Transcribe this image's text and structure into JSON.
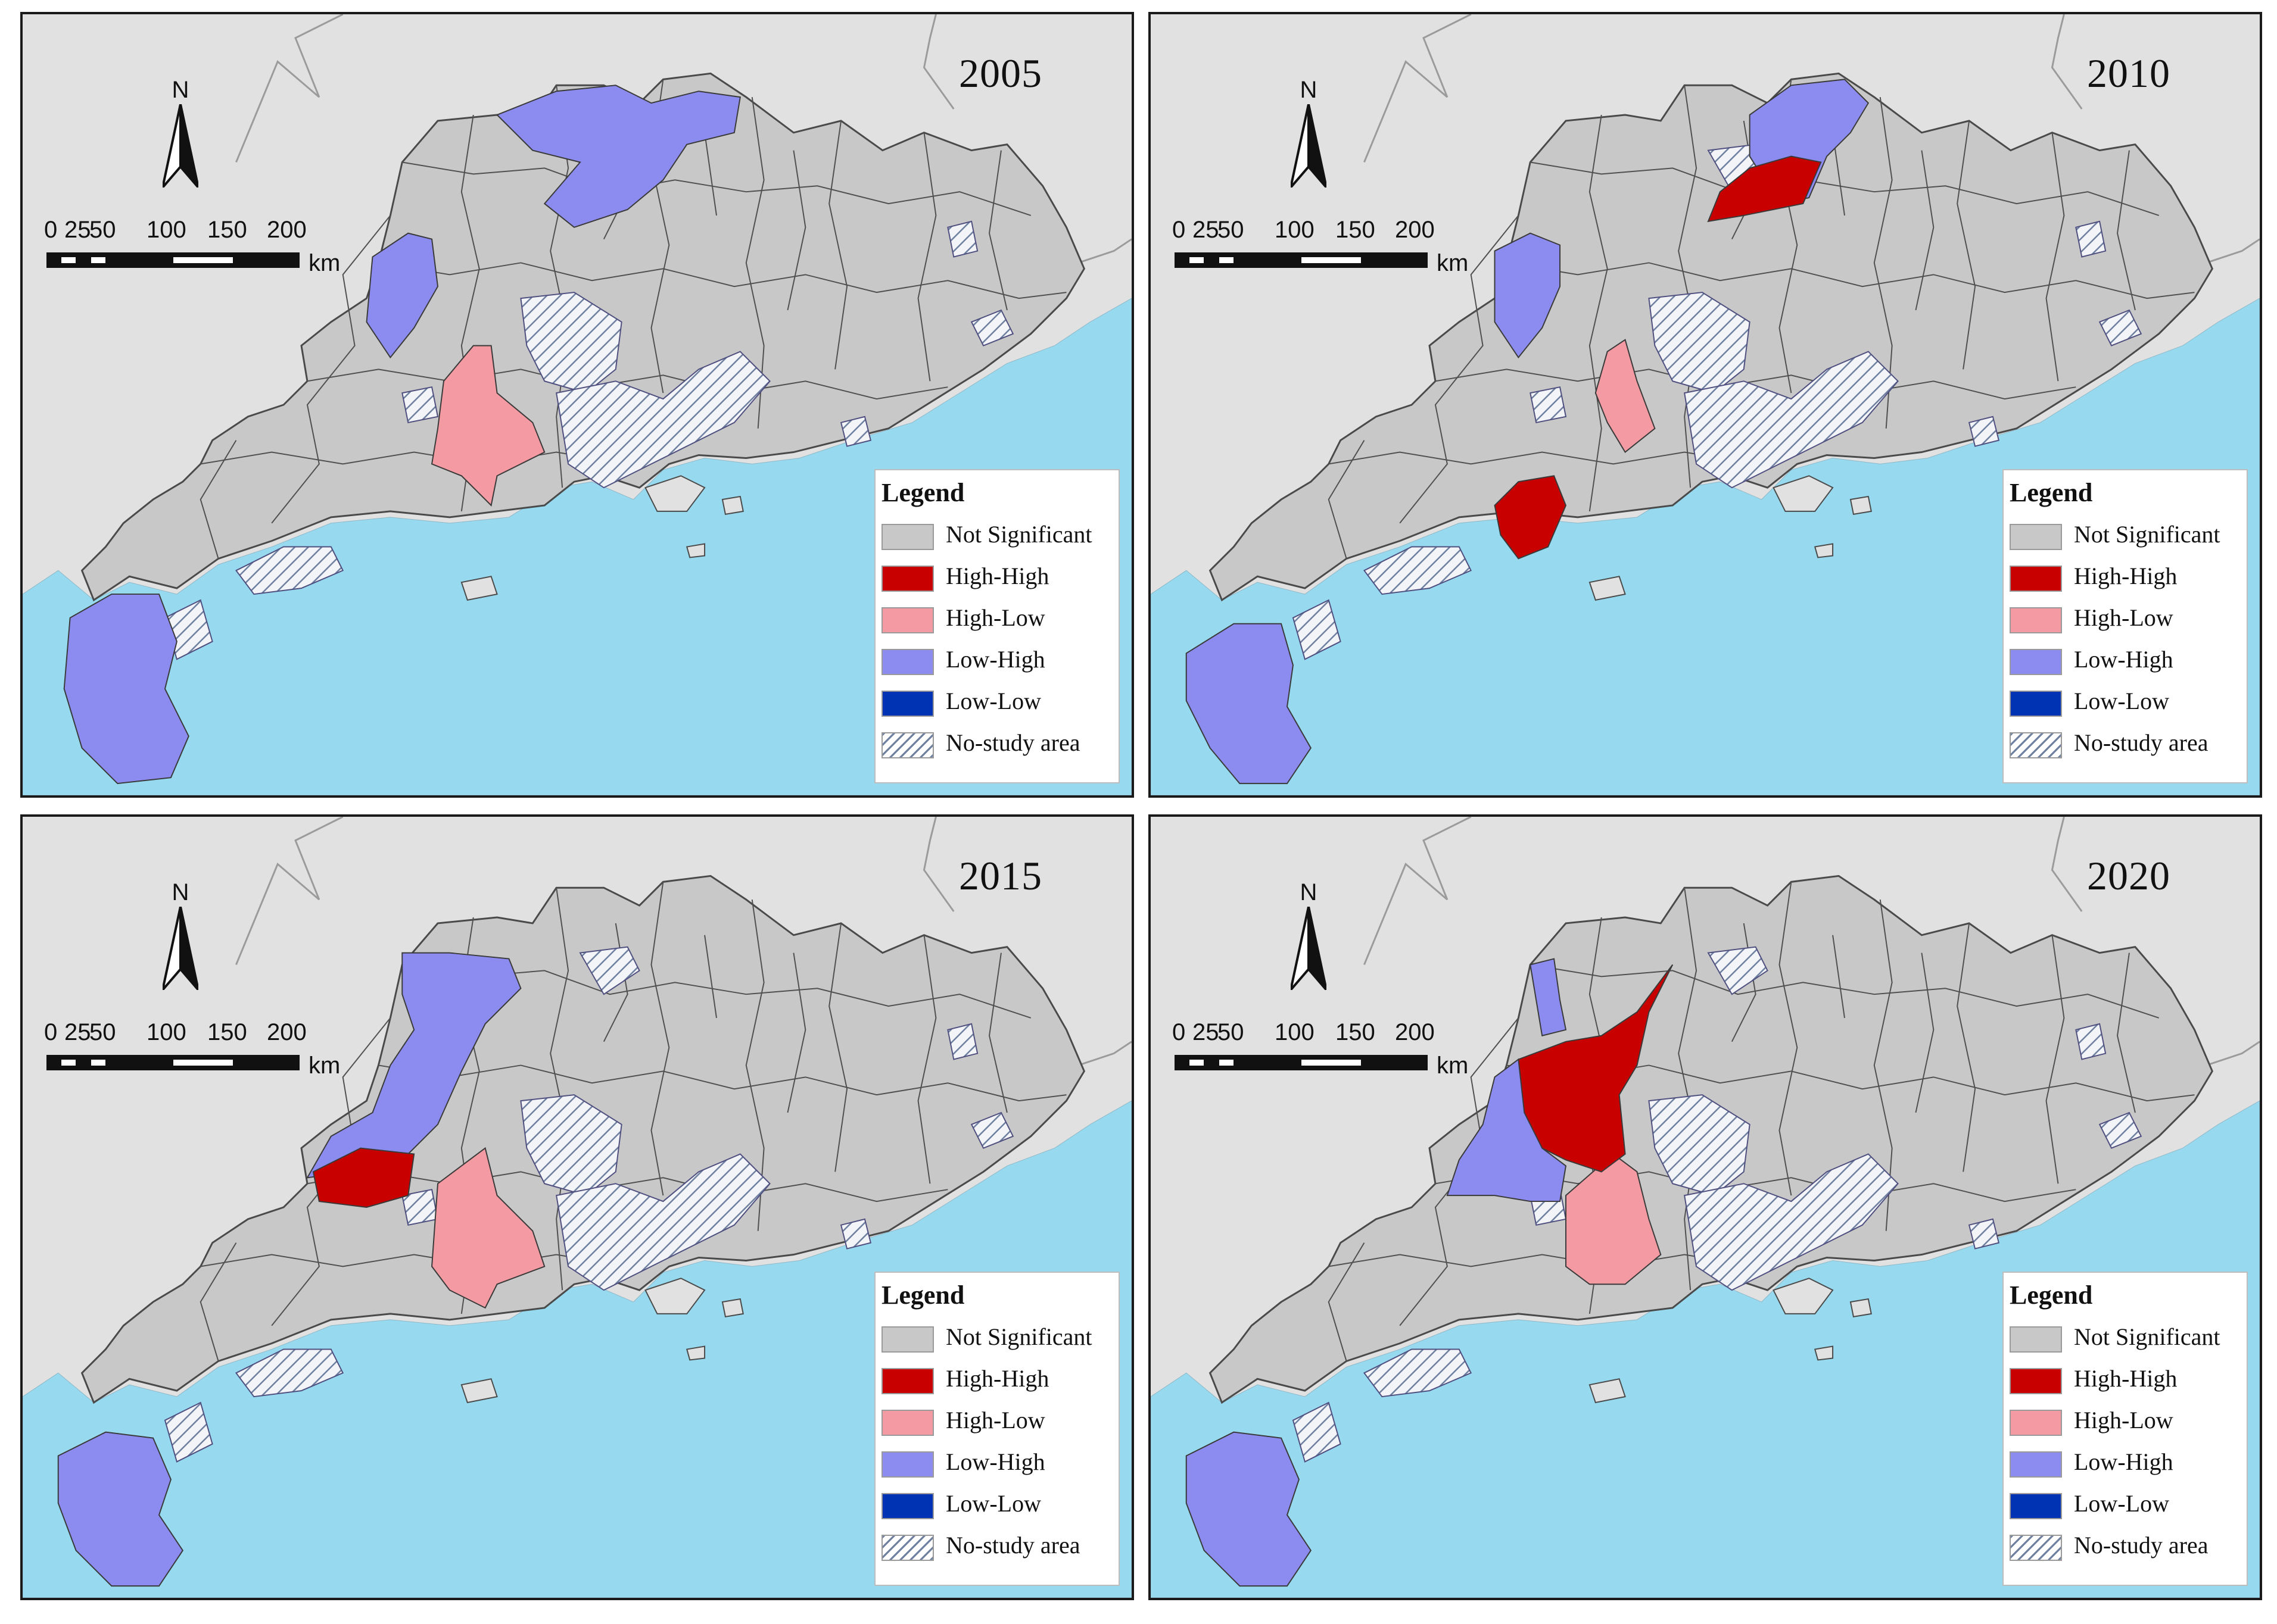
{
  "colors": {
    "background": "#e1e1e1",
    "sea": "#97d9ef",
    "not_significant": "#c8c8c8",
    "high_high": "#c80000",
    "high_low": "#f49aa2",
    "low_high": "#8c8cf0",
    "low_low": "#0033b4",
    "no_study_hatch": "#6e7fa0",
    "boundary": "#4a4a4a"
  },
  "north_arrow": {
    "letter": "N"
  },
  "scale_bar": {
    "ticks": [
      "0",
      "25",
      "50",
      "100",
      "150",
      "200"
    ],
    "unit": "km"
  },
  "legend": {
    "title": "Legend",
    "items": [
      {
        "label": "Not Significant",
        "color": "#c8c8c8",
        "icon": "swatch"
      },
      {
        "label": "High-High",
        "color": "#c80000",
        "icon": "swatch"
      },
      {
        "label": "High-Low",
        "color": "#f49aa2",
        "icon": "swatch"
      },
      {
        "label": "Low-High",
        "color": "#8c8cf0",
        "icon": "swatch"
      },
      {
        "label": "Low-Low",
        "color": "#0033b4",
        "icon": "swatch"
      },
      {
        "label": "No-study area",
        "color": "#6e7fa0",
        "icon": "hatch"
      }
    ]
  },
  "panels": [
    {
      "year": "2005",
      "clusters": {
        "high_high": [],
        "high_low": [
          "central-west cluster"
        ],
        "low_high": [
          "northern cluster",
          "northwest county",
          "southwest peninsula"
        ],
        "low_low": []
      }
    },
    {
      "year": "2010",
      "clusters": {
        "high_high": [
          "northern county",
          "south-central county"
        ],
        "high_low": [
          "central cluster"
        ],
        "low_high": [
          "northern cluster",
          "northwest county",
          "southwest peninsula"
        ],
        "low_low": []
      }
    },
    {
      "year": "2015",
      "clusters": {
        "high_high": [
          "western county"
        ],
        "high_low": [
          "central cluster"
        ],
        "low_high": [
          "northwest corridor",
          "southwest peninsula"
        ],
        "low_low": []
      }
    },
    {
      "year": "2020",
      "clusters": {
        "high_high": [
          "northwest-central block"
        ],
        "high_low": [
          "central cluster"
        ],
        "low_high": [
          "northwest county",
          "western county",
          "southwest peninsula"
        ],
        "low_low": []
      }
    }
  ]
}
